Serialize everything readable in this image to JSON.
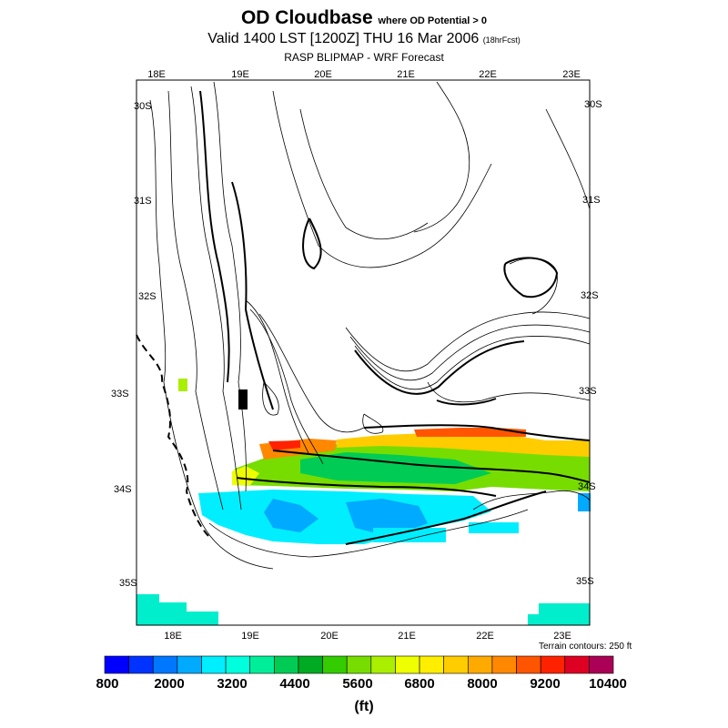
{
  "title": {
    "main": "OD Cloudbase",
    "main_qualifier": "where OD Potential > 0",
    "valid": "Valid 1400 LST [1200Z] THU 16 Mar 2006",
    "forecast_hours": "(18hrFcst)",
    "source": "RASP BLIPMAP - WRF Forecast"
  },
  "map": {
    "lon_labels_top": [
      "18E",
      "19E",
      "20E",
      "21E",
      "22E",
      "23E"
    ],
    "lon_labels_bottom": [
      "18E",
      "19E",
      "20E",
      "21E",
      "22E",
      "23E"
    ],
    "lat_labels_left": [
      "30S",
      "31S",
      "32S",
      "33S",
      "34S",
      "35S"
    ],
    "lat_labels_right": [
      "30S",
      "31S",
      "32S",
      "33S",
      "34S",
      "35S"
    ],
    "terrain_note": "Terrain contours: 250 ft"
  },
  "colorbar": {
    "colors": [
      "#0000ff",
      "#0033ff",
      "#0077ff",
      "#00aaff",
      "#00eeff",
      "#00ffdd",
      "#00ee99",
      "#00cc55",
      "#00aa22",
      "#33cc00",
      "#77dd00",
      "#aaee00",
      "#eeff00",
      "#ffee00",
      "#ffcc00",
      "#ffaa00",
      "#ff8800",
      "#ff5500",
      "#ff2200",
      "#dd0022",
      "#aa0055"
    ],
    "labels": [
      "800",
      "2000",
      "3200",
      "4400",
      "5600",
      "6800",
      "8000",
      "9200",
      "10400"
    ],
    "unit": "(ft)"
  }
}
